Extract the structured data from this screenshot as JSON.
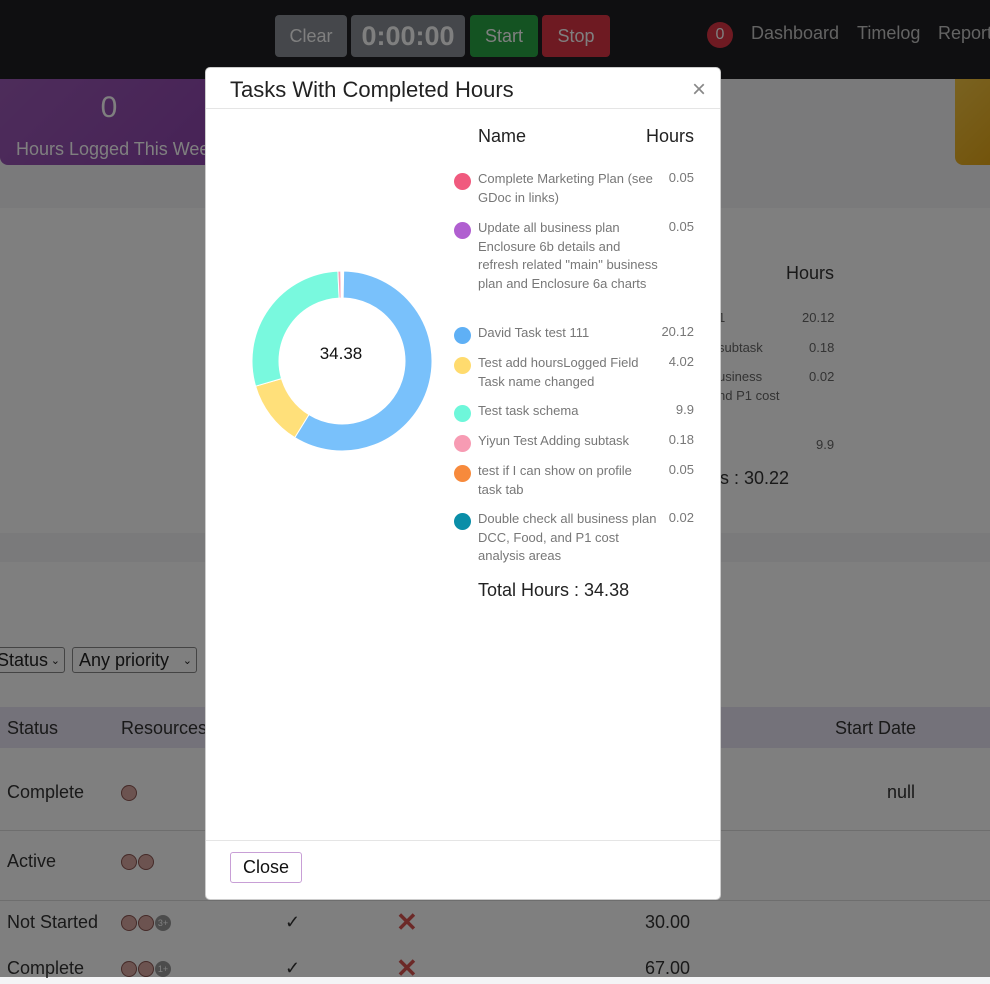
{
  "navbar": {
    "clear_label": "Clear",
    "timer": "0:00:00",
    "start_label": "Start",
    "stop_label": "Stop",
    "notification_count": "0",
    "links": [
      "Dashboard",
      "Timelog",
      "Reports"
    ]
  },
  "background": {
    "hours_card": {
      "value": "0",
      "label": "Hours Logged This Week"
    },
    "summary": {
      "hours_header": "Hours",
      "rows": [
        {
          "name": "1",
          "hours": "20.12"
        },
        {
          "name": "subtask",
          "hours": "0.18"
        },
        {
          "name": "usiness",
          "hours": "0.02"
        },
        {
          "name": "nd P1 cost",
          "hours": ""
        },
        {
          "name": "",
          "hours": "9.9"
        }
      ],
      "total": "urs : 30.22"
    },
    "filters": {
      "status": "Status",
      "priority": "Any priority"
    },
    "table": {
      "headers": [
        "Status",
        "Resources",
        "Start Date"
      ],
      "rows": [
        {
          "status": "Complete",
          "start_date": "null"
        },
        {
          "status": "Active"
        },
        {
          "status": "Not Started",
          "check": "✓",
          "cross": "✕",
          "hours": "30.00",
          "more": "3+"
        },
        {
          "status": "Complete",
          "check": "✓",
          "cross": "✕",
          "hours": "67.00",
          "more": "1+"
        }
      ]
    }
  },
  "modal": {
    "title": "Tasks With Completed Hours",
    "close_x": "×",
    "total_center": "34.38",
    "columns": {
      "name": "Name",
      "hours": "Hours"
    },
    "items": [
      {
        "name": "Complete Marketing Plan (see GDoc in links)",
        "hours": "0.05",
        "color": "#f05a7e"
      },
      {
        "name": "Update all business plan Enclosure 6b details and refresh related \"main\" business plan and Enclosure 6a charts",
        "hours": "0.05",
        "color": "#b05fd0"
      },
      {
        "name": "David Task test 111",
        "hours": "20.12",
        "color": "#5fb0f5"
      },
      {
        "name": "Test add hoursLogged Field Task name changed",
        "hours": "4.02",
        "color": "#ffdb6e"
      },
      {
        "name": "Test task schema",
        "hours": "9.9",
        "color": "#6ef7da"
      },
      {
        "name": "Yiyun Test Adding subtask",
        "hours": "0.18",
        "color": "#f79bb3"
      },
      {
        "name": "test if I can show on profile task tab",
        "hours": "0.05",
        "color": "#f78a3c"
      },
      {
        "name": "Double check all business plan DCC, Food, and P1 cost analysis areas",
        "hours": "0.02",
        "color": "#0a8ea8"
      }
    ],
    "total_label": "Total Hours : 34.38",
    "close_button": "Close"
  },
  "chart_data": {
    "type": "pie",
    "center_label": "34.38",
    "categories": [
      "Complete Marketing Plan (see GDoc in links)",
      "Update all business plan Enclosure 6b details and refresh related \"main\" business plan and Enclosure 6a charts",
      "David Task test 111",
      "Test add hoursLogged Field Task name changed",
      "Test task schema",
      "Yiyun Test Adding subtask",
      "test if I can show on profile task tab",
      "Double check all business plan DCC, Food, and P1 cost analysis areas"
    ],
    "values": [
      0.05,
      0.05,
      20.12,
      4.02,
      9.9,
      0.18,
      0.05,
      0.02
    ],
    "colors": [
      "#f05a7e",
      "#b05fd0",
      "#79c1fb",
      "#ffe07a",
      "#79f9de",
      "#f7a3b9",
      "#f78a3c",
      "#0a8ea8"
    ]
  }
}
